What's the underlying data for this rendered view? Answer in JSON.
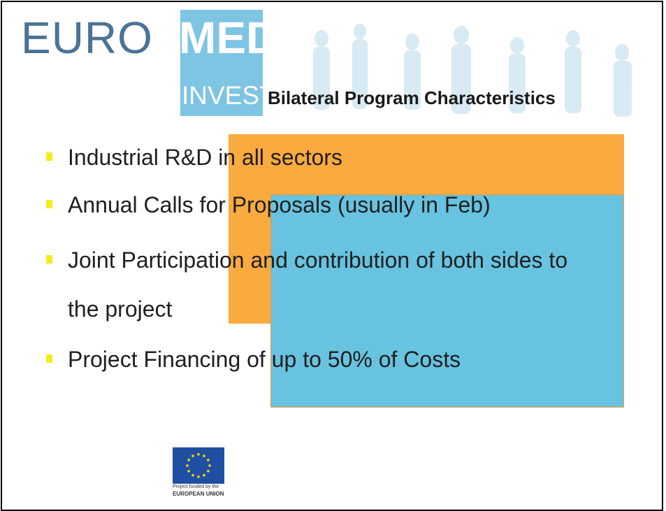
{
  "header": {
    "logo": {
      "first": "EURO",
      "second": "MED",
      "third": "INVEST"
    },
    "title": "Bilateral Program Characteristics"
  },
  "bullets": [
    "Industrial R&D in all sectors",
    "Annual Calls for Proposals (usually in Feb)",
    "Joint Participation and contribution of both sides to the project",
    "Project Financing of up to 50% of Costs"
  ],
  "footer": {
    "line1": "Project funded by the",
    "line2": "EUROPEAN UNION"
  }
}
